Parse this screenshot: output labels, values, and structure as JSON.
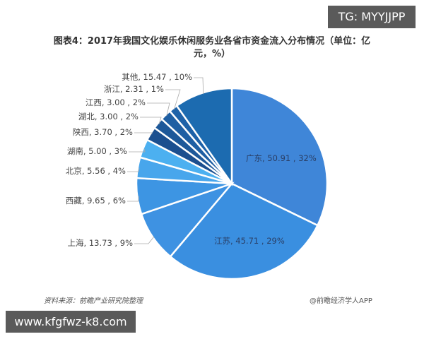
{
  "chart_data": {
    "type": "pie",
    "title": "图表4：2017年我国文化娱乐休闲服务业各省市资金流入分布情况（单位：亿元，%）",
    "start_angle": "12 o'clock",
    "direction": "clockwise",
    "categories": [
      "广东",
      "江苏",
      "上海",
      "西藏",
      "北京",
      "湖南",
      "陕西",
      "湖北",
      "江西",
      "浙江",
      "其他"
    ],
    "values": [
      50.91,
      45.71,
      13.73,
      9.65,
      5.56,
      5.0,
      3.7,
      3.0,
      3.0,
      2.31,
      15.47
    ],
    "percentages": [
      32,
      29,
      9,
      6,
      4,
      3,
      2,
      2,
      2,
      1,
      10
    ],
    "labels": [
      "广东, 50.91 , 32%",
      "江苏, 45.71 , 29%",
      "上海, 13.73 , 9%",
      "西藏, 9.65 , 6%",
      "北京, 5.56 , 4%",
      "湖南, 5.00 , 3%",
      "陕西, 3.70 , 2%",
      "湖北, 3.00 , 2%",
      "江西, 3.00 , 2%",
      "浙江, 2.31 , 1%",
      "其他, 15.47 , 10%"
    ],
    "colors": [
      "#3f86d8",
      "#3a8fe0",
      "#3e92e2",
      "#3d95e3",
      "#48a6ec",
      "#4cb0f0",
      "#1b4f8f",
      "#1d5899",
      "#1f5fa3",
      "#1e62a8",
      "#1c6bb0"
    ]
  },
  "header": {
    "title_line1": "图表4：2017年我国文化娱乐休闲服务业各省市资金流入分布情况（单位：亿",
    "title_line2": "元，%）"
  },
  "footer": {
    "source": "资料来源：前瞻产业研究院整理",
    "credit": "@前瞻经济学人APP"
  },
  "watermarks": {
    "top_right": "TG: MYYJJPP",
    "bottom_left": "www.kfgfwz-k8.com"
  }
}
